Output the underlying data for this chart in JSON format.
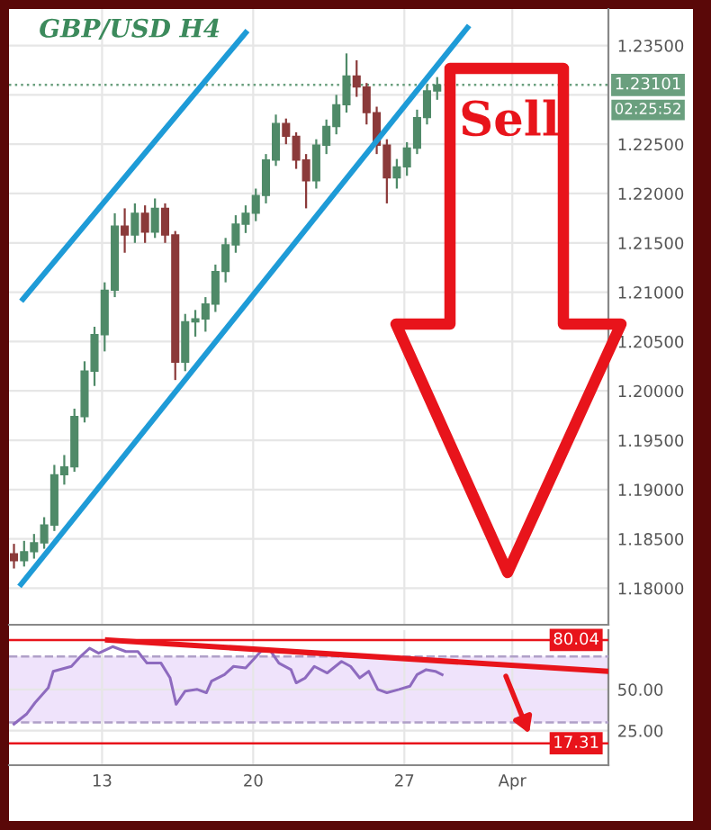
{
  "chart_data": [
    {
      "type": "candlestick",
      "title": "GBP/USD H4",
      "x": [
        8.92,
        9.39,
        9.85,
        10.32,
        10.79,
        11.25,
        11.72,
        12.19,
        12.65,
        13.12,
        13.59,
        14.05,
        14.52,
        14.99,
        15.45,
        15.92,
        16.39,
        16.85,
        17.32,
        17.79,
        18.25,
        18.72,
        19.19,
        19.65,
        20.12,
        20.59,
        21.05,
        21.52,
        21.99,
        22.45,
        22.92,
        23.39,
        23.85,
        24.32,
        24.79,
        25.25,
        25.72,
        26.19,
        26.65,
        27.12,
        27.59,
        28.05,
        28.52
      ],
      "ohlc": [
        [
          1.1835,
          1.1845,
          1.182,
          1.1828
        ],
        [
          1.1828,
          1.1848,
          1.1822,
          1.1837
        ],
        [
          1.1837,
          1.1855,
          1.183,
          1.1846
        ],
        [
          1.1846,
          1.1872,
          1.184,
          1.1864
        ],
        [
          1.1864,
          1.1925,
          1.1858,
          1.1915
        ],
        [
          1.1915,
          1.1935,
          1.1905,
          1.1923
        ],
        [
          1.1923,
          1.1982,
          1.1918,
          1.1974
        ],
        [
          1.1974,
          1.203,
          1.1968,
          1.202
        ],
        [
          1.202,
          1.2065,
          1.2005,
          1.2057
        ],
        [
          1.2057,
          1.211,
          1.204,
          1.2102
        ],
        [
          1.2102,
          1.218,
          1.2095,
          1.2167
        ],
        [
          1.2167,
          1.2185,
          1.214,
          1.2158
        ],
        [
          1.2158,
          1.219,
          1.215,
          1.218
        ],
        [
          1.218,
          1.2188,
          1.215,
          1.2161
        ],
        [
          1.2161,
          1.2195,
          1.2155,
          1.2185
        ],
        [
          1.2185,
          1.219,
          1.215,
          1.2158
        ],
        [
          1.2158,
          1.2162,
          1.2011,
          1.2029
        ],
        [
          1.2029,
          1.2078,
          1.202,
          1.207
        ],
        [
          1.207,
          1.2082,
          1.2055,
          1.2073
        ],
        [
          1.2073,
          1.2095,
          1.206,
          1.2088
        ],
        [
          1.2088,
          1.2128,
          1.208,
          1.2121
        ],
        [
          1.2121,
          1.2155,
          1.211,
          1.2148
        ],
        [
          1.2148,
          1.2178,
          1.214,
          1.2169
        ],
        [
          1.2169,
          1.2188,
          1.216,
          1.218
        ],
        [
          1.218,
          1.2205,
          1.2172,
          1.2198
        ],
        [
          1.2198,
          1.224,
          1.219,
          1.2234
        ],
        [
          1.2234,
          1.228,
          1.2228,
          1.2271
        ],
        [
          1.2271,
          1.2276,
          1.225,
          1.2258
        ],
        [
          1.2258,
          1.2262,
          1.2225,
          1.2234
        ],
        [
          1.2234,
          1.224,
          1.2185,
          1.2213
        ],
        [
          1.2213,
          1.2255,
          1.2205,
          1.2249
        ],
        [
          1.2249,
          1.2275,
          1.224,
          1.2268
        ],
        [
          1.2268,
          1.23,
          1.226,
          1.229
        ],
        [
          1.229,
          1.2342,
          1.2282,
          1.2319
        ],
        [
          1.2319,
          1.2335,
          1.2298,
          1.2308
        ],
        [
          1.2308,
          1.2312,
          1.227,
          1.2282
        ],
        [
          1.2282,
          1.2288,
          1.224,
          1.2249
        ],
        [
          1.2249,
          1.2255,
          1.219,
          1.2216
        ],
        [
          1.2216,
          1.2235,
          1.2205,
          1.2227
        ],
        [
          1.2227,
          1.2252,
          1.2218,
          1.2246
        ],
        [
          1.2246,
          1.2285,
          1.224,
          1.2277
        ],
        [
          1.2277,
          1.231,
          1.227,
          1.2304
        ],
        [
          1.2304,
          1.2318,
          1.2295,
          1.231
        ]
      ],
      "colors": [
        "#8b3a3a",
        "#4f8a68",
        "#4f8a68",
        "#4f8a68",
        "#4f8a68",
        "#4f8a68",
        "#4f8a68",
        "#4f8a68",
        "#4f8a68",
        "#4f8a68",
        "#4f8a68",
        "#8b3a3a",
        "#4f8a68",
        "#8b3a3a",
        "#4f8a68",
        "#8b3a3a",
        "#8b3a3a",
        "#4f8a68",
        "#4f8a68",
        "#4f8a68",
        "#4f8a68",
        "#4f8a68",
        "#4f8a68",
        "#4f8a68",
        "#4f8a68",
        "#4f8a68",
        "#4f8a68",
        "#8b3a3a",
        "#8b3a3a",
        "#8b3a3a",
        "#4f8a68",
        "#4f8a68",
        "#4f8a68",
        "#4f8a68",
        "#8b3a3a",
        "#8b3a3a",
        "#8b3a3a",
        "#8b3a3a",
        "#4f8a68",
        "#4f8a68",
        "#4f8a68",
        "#4f8a68",
        "#4f8a68"
      ],
      "series": [
        {
          "type": "line",
          "color": "#1e9bd7",
          "x": [
            9.34,
            19.65
          ],
          "values": [
            1.2093,
            1.2363
          ]
        },
        {
          "type": "line",
          "color": "#1e9bd7",
          "x": [
            9.25,
            29.92
          ],
          "values": [
            1.1804,
            1.2368
          ]
        }
      ],
      "xlim": [
        8.69,
        36.45
      ],
      "xticks": [
        13,
        20,
        27,
        {
          "value": 32,
          "label": null
        }
      ],
      "ylim": [
        1.1763,
        1.2387
      ],
      "yticks": [
        {
          "value": 1.18,
          "label": "1.18000"
        },
        {
          "value": 1.185,
          "label": "1.18500"
        },
        {
          "value": 1.19,
          "label": "1.19000"
        },
        {
          "value": 1.195,
          "label": "1.19500"
        },
        {
          "value": 1.2,
          "label": "1.20000"
        },
        {
          "value": 1.205,
          "label": "1.20500"
        },
        {
          "value": 1.21,
          "label": "1.21000"
        },
        {
          "value": 1.215,
          "label": "1.21500"
        },
        {
          "value": 1.22,
          "label": "1.22000"
        },
        {
          "value": 1.225,
          "label": "1.22500"
        },
        {
          "value": 1.23,
          "label": null
        },
        {
          "value": 1.235,
          "label": "1.23500"
        }
      ],
      "tick_labels": "y",
      "grid": true,
      "ref_lines": [
        {
          "axis": "y",
          "value": 1.23101,
          "label": "1.23101",
          "color": "#6a9f7e",
          "line_style": "dotted"
        }
      ],
      "annotations": [
        "02:25:52",
        "Sell"
      ]
    },
    {
      "type": "line",
      "series": [
        {
          "color": "#8e6bbf",
          "x": [
            8.92,
            9.5,
            9.9,
            10.51,
            10.74,
            11.58,
            12.0,
            12.42,
            12.84,
            13.49,
            14.1,
            14.66,
            15.08,
            15.73,
            16.15,
            16.43,
            16.85,
            17.41,
            17.83,
            18.07,
            18.67,
            19.09,
            19.65,
            20.35,
            20.77,
            21.19,
            21.75,
            21.99,
            22.41,
            22.83,
            23.43,
            24.09,
            24.51,
            24.93,
            25.35,
            25.77,
            26.19,
            26.75,
            27.26,
            27.59,
            28.01,
            28.43,
            28.75
          ],
          "values": [
            29,
            35,
            42,
            51,
            61,
            64,
            70,
            75,
            72,
            76,
            73,
            73,
            66,
            66,
            57,
            41,
            49,
            50,
            48,
            55,
            59,
            64,
            63,
            73,
            74,
            66,
            62,
            54,
            57,
            64,
            60,
            67,
            64,
            57,
            61,
            50,
            48,
            50,
            52,
            59,
            62,
            61,
            59
          ]
        },
        {
          "color": "#e8141b",
          "x": [
            13.26,
            36.41
          ],
          "values": [
            80,
            61
          ]
        }
      ],
      "xlim": [
        8.69,
        36.45
      ],
      "xticks": [
        13,
        20,
        27,
        {
          "value": 32,
          "label": "Apr"
        }
      ],
      "ylim": [
        4,
        86
      ],
      "yticks": [
        {
          "value": 50,
          "label": "50.00"
        },
        {
          "value": 25,
          "label": "25.00"
        }
      ],
      "grid": true,
      "ref_lines": [
        {
          "axis": "y",
          "value": 80.04,
          "label": "80.04",
          "color": "#e8141b",
          "line_style": "solid"
        },
        {
          "axis": "y",
          "value": 17.31,
          "label": "17.31",
          "color": "#e8141b",
          "line_style": "solid"
        },
        {
          "axis": "y",
          "value": 70,
          "color": "#b0a0c8",
          "line_style": "dashed"
        },
        {
          "axis": "y",
          "value": 30,
          "color": "#b0a0c8",
          "line_style": "dashed"
        }
      ],
      "bands": [
        {
          "axis": "y",
          "from": 30,
          "to": 70,
          "color": "#efe3fb"
        }
      ]
    }
  ]
}
